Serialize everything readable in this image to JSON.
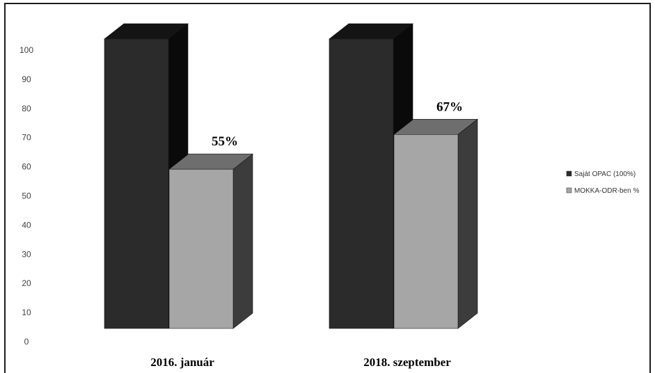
{
  "chart_data": {
    "type": "bar",
    "style": "3d-clustered-column",
    "title": "",
    "xlabel": "",
    "ylabel": "",
    "categories": [
      "2016. január",
      "2018. szeptember"
    ],
    "series": [
      {
        "name": "Saját OPAC (100%)",
        "values": [
          100,
          100
        ],
        "color": "#2b2b2b",
        "data_labels": [
          "",
          ""
        ]
      },
      {
        "name": "MOKKA-ODR-ben %",
        "values": [
          55,
          67
        ],
        "color": "#a6a6a6",
        "data_labels": [
          "55%",
          "67%"
        ]
      }
    ],
    "ylim": [
      0,
      100
    ],
    "yticks": [
      0,
      10,
      20,
      30,
      40,
      50,
      60,
      70,
      80,
      90,
      100
    ],
    "grid": false,
    "legend": "right"
  }
}
